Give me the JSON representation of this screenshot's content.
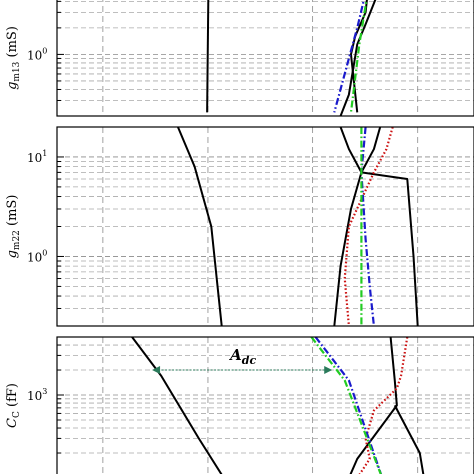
{
  "chart_data": [
    {
      "type": "line",
      "ylabel_main": "g",
      "ylabel_sub": "m13",
      "ylabel_unit": " (mS)",
      "yticks": [
        {
          "value": 1,
          "base": "10",
          "exp": "0"
        }
      ],
      "log_scale_y": true,
      "grid": true,
      "series": [
        {
          "color": "#000000",
          "dash": "solid",
          "values": [
            [
              0.363,
              5.0
            ],
            [
              0.36,
              0.22
            ]
          ]
        },
        {
          "color": "#000000",
          "dash": "solid",
          "values": [
            [
              0.77,
              5.0
            ],
            [
              0.74,
              2.2
            ],
            [
              0.72,
              1.3
            ],
            [
              0.7,
              0.35
            ],
            [
              0.68,
              0.2
            ]
          ]
        },
        {
          "color": "#000000",
          "dash": "solid",
          "values": [
            [
              0.72,
              0.22
            ],
            [
              0.705,
              1.0
            ],
            [
              0.715,
              1.6
            ],
            [
              0.74,
              3.0
            ],
            [
              0.745,
              5.0
            ]
          ]
        },
        {
          "color": "#1a1acc",
          "dash": "dashdot",
          "values": [
            [
              0.74,
              5.0
            ],
            [
              0.72,
              2.0
            ],
            [
              0.7,
              0.9
            ],
            [
              0.665,
              0.22
            ]
          ]
        },
        {
          "color": "#22cc22",
          "dash": "dashdot",
          "values": [
            [
              0.745,
              5.0
            ],
            [
              0.725,
              1.3
            ],
            [
              0.705,
              0.22
            ]
          ]
        }
      ]
    },
    {
      "type": "line",
      "ylabel_main": "g",
      "ylabel_sub": "m22",
      "ylabel_unit": " (mS)",
      "yticks": [
        {
          "value": 10,
          "base": "10",
          "exp": "1"
        },
        {
          "value": 1,
          "base": "10",
          "exp": "0"
        }
      ],
      "log_scale_y": true,
      "grid": true,
      "series": [
        {
          "color": "#000000",
          "dash": "solid",
          "values": [
            [
              0.29,
              20
            ],
            [
              0.33,
              8
            ],
            [
              0.37,
              2
            ],
            [
              0.385,
              0.5
            ],
            [
              0.395,
              0.2
            ]
          ]
        },
        {
          "color": "#000000",
          "dash": "solid",
          "values": [
            [
              0.775,
              20
            ],
            [
              0.76,
              12
            ],
            [
              0.73,
              7
            ],
            [
              0.705,
              3
            ],
            [
              0.68,
              0.8
            ],
            [
              0.665,
              0.2
            ]
          ]
        },
        {
          "color": "#000000",
          "dash": "solid",
          "values": [
            [
              0.68,
              20
            ],
            [
              0.7,
              12
            ],
            [
              0.73,
              7
            ],
            [
              0.84,
              6
            ],
            [
              0.855,
              1
            ],
            [
              0.865,
              0.2
            ]
          ]
        },
        {
          "color": "#cc1111",
          "dash": "dotted",
          "values": [
            [
              0.805,
              20
            ],
            [
              0.79,
              12
            ],
            [
              0.76,
              7
            ],
            [
              0.7,
              2
            ],
            [
              0.69,
              0.6
            ],
            [
              0.7,
              0.2
            ]
          ]
        },
        {
          "color": "#1a1acc",
          "dash": "dashdot",
          "values": [
            [
              0.74,
              20
            ],
            [
              0.73,
              7
            ],
            [
              0.74,
              1.5
            ],
            [
              0.75,
              0.5
            ],
            [
              0.76,
              0.2
            ]
          ]
        },
        {
          "color": "#22cc22",
          "dash": "dashdot",
          "values": [
            [
              0.73,
              20
            ],
            [
              0.73,
              0.2
            ]
          ]
        }
      ]
    },
    {
      "type": "line",
      "ylabel_main": "C",
      "ylabel_sub": "C",
      "ylabel_unit": " (fF)",
      "yticks": [
        {
          "value": 1000,
          "base": "10",
          "exp": "3"
        }
      ],
      "log_scale_y": true,
      "grid": true,
      "annotation": {
        "main": "A",
        "sub": "dc",
        "from_x": 0.228,
        "to_x": 0.66,
        "y": 2000
      },
      "series": [
        {
          "color": "#000000",
          "dash": "solid",
          "values": [
            [
              0.18,
              5000
            ],
            [
              0.25,
              1700
            ],
            [
              0.34,
              300
            ],
            [
              0.4,
              100
            ]
          ]
        },
        {
          "color": "#000000",
          "dash": "solid",
          "values": [
            [
              0.8,
              5000
            ],
            [
              0.81,
              1500
            ],
            [
              0.815,
              750
            ],
            [
              0.72,
              170
            ],
            [
              0.7,
              100
            ]
          ]
        },
        {
          "color": "#000000",
          "dash": "solid",
          "values": [
            [
              0.81,
              750
            ],
            [
              0.87,
              200
            ],
            [
              0.88,
              100
            ]
          ]
        },
        {
          "color": "#cc1111",
          "dash": "dotted",
          "values": [
            [
              0.84,
              5000
            ],
            [
              0.825,
              1700
            ],
            [
              0.815,
              1200
            ],
            [
              0.76,
              650
            ],
            [
              0.74,
              300
            ],
            [
              0.75,
              170
            ],
            [
              0.72,
              100
            ]
          ]
        },
        {
          "color": "#1a1acc",
          "dash": "dashdot",
          "values": [
            [
              0.62,
              5000
            ],
            [
              0.7,
              1500
            ],
            [
              0.78,
              100
            ]
          ]
        },
        {
          "color": "#22cc22",
          "dash": "dashdot",
          "values": [
            [
              0.61,
              5000
            ],
            [
              0.69,
              1500
            ],
            [
              0.78,
              100
            ]
          ]
        }
      ]
    }
  ]
}
